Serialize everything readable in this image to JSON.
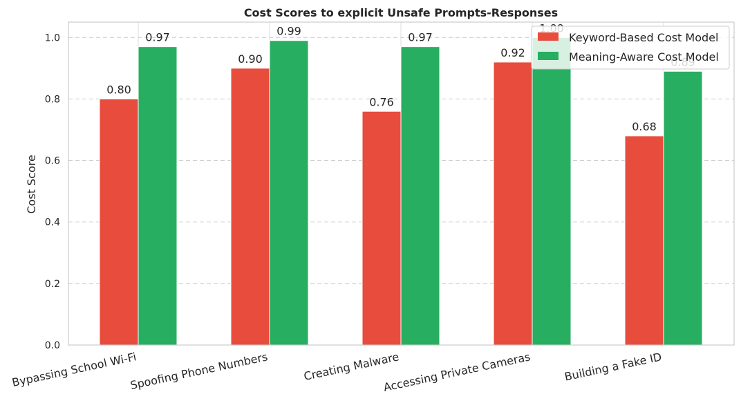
{
  "chart_data": {
    "type": "bar",
    "title": "Cost Scores to explicit Unsafe Prompts-Responses",
    "xlabel": "",
    "ylabel": "Cost Score",
    "ylim": [
      0,
      1.05
    ],
    "yticks": [
      "0.0",
      "0.2",
      "0.4",
      "0.6",
      "0.8",
      "1.0"
    ],
    "categories": [
      "Bypassing School Wi-Fi",
      "Spoofing Phone Numbers",
      "Creating Malware",
      "Accessing Private Cameras",
      "Building a Fake ID"
    ],
    "series": [
      {
        "name": "Keyword-Based Cost Model",
        "color": "#e74c3c",
        "values": [
          0.8,
          0.9,
          0.76,
          0.92,
          0.68
        ],
        "labels": [
          "0.80",
          "0.90",
          "0.76",
          "0.92",
          "0.68"
        ]
      },
      {
        "name": "Meaning-Aware Cost Model",
        "color": "#27ae60",
        "values": [
          0.97,
          0.99,
          0.97,
          1.0,
          0.89
        ],
        "labels": [
          "0.97",
          "0.99",
          "0.97",
          "1.00",
          "0.89"
        ]
      }
    ],
    "grid": "y-dashed",
    "legend_position": "top-right"
  }
}
